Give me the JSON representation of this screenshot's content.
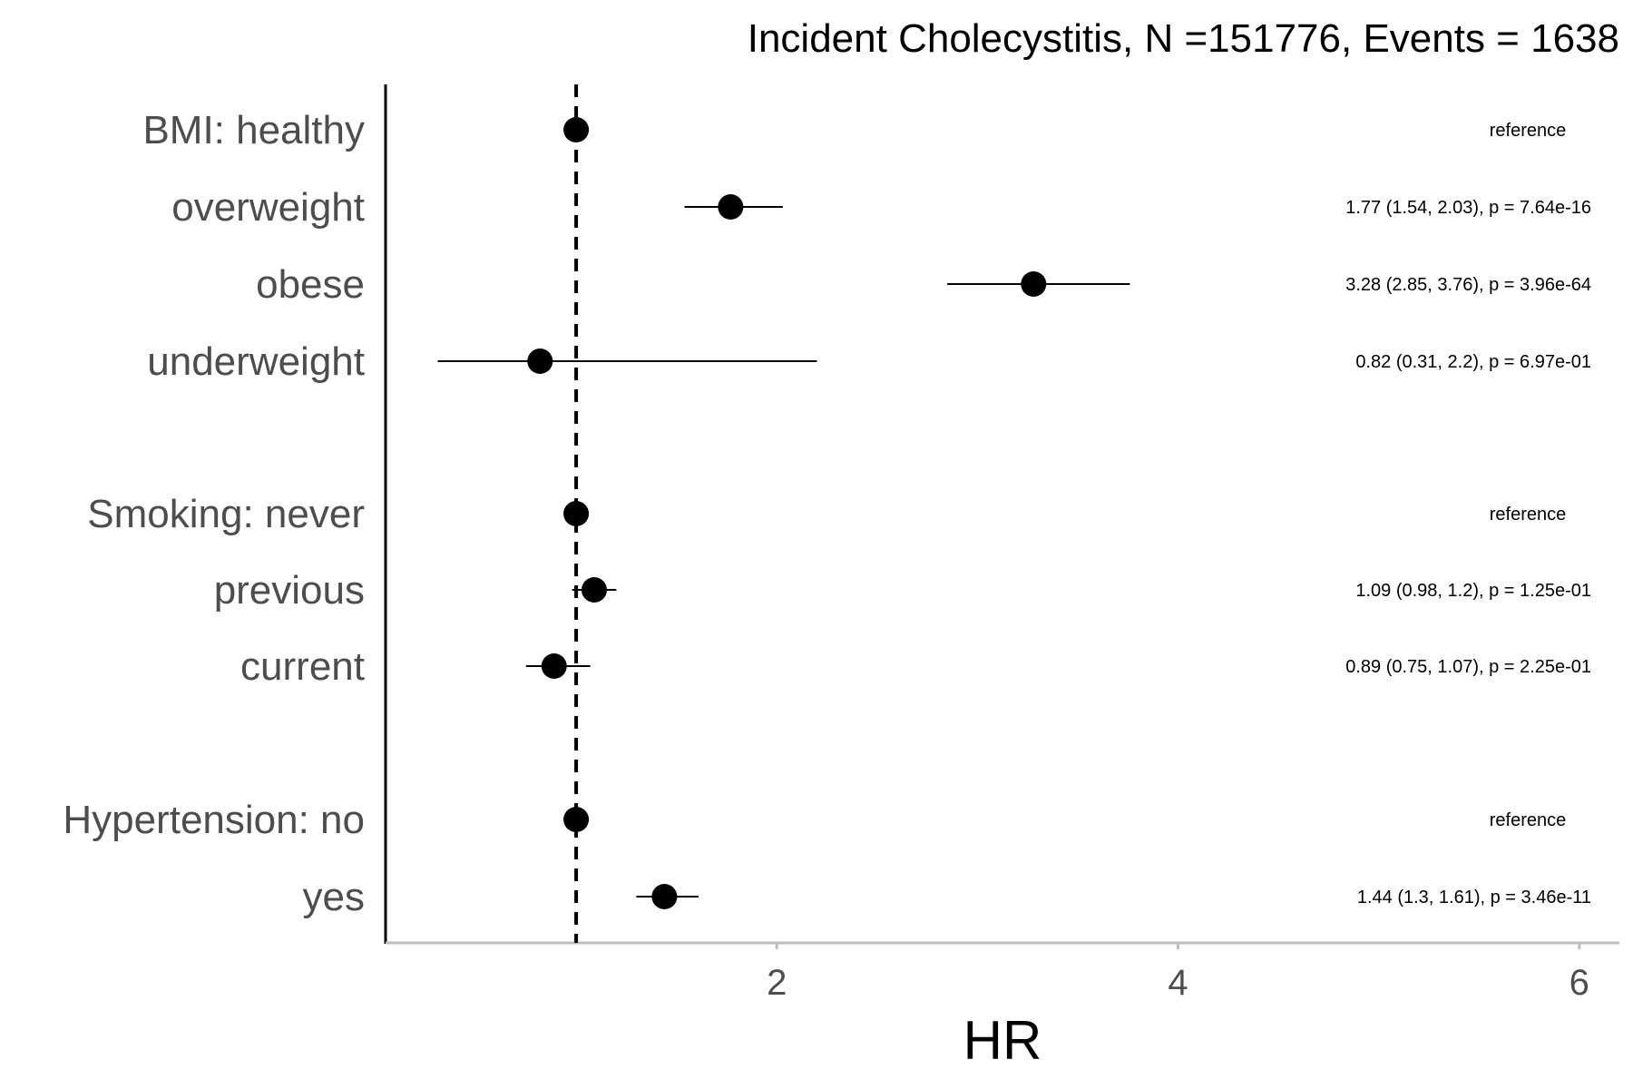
{
  "chart_data": {
    "type": "scatter",
    "title": "Incident Cholecystitis, N =151776, Events = 1638",
    "xlabel": "HR",
    "ylabel": "",
    "xlim": [
      0.05,
      6.2
    ],
    "xticks": [
      2,
      4,
      6
    ],
    "reference_line": 1,
    "grid": false,
    "rows": [
      {
        "label": "BMI: healthy",
        "hr": 1.0,
        "lower": null,
        "upper": null,
        "annotation": "reference"
      },
      {
        "label": "overweight",
        "hr": 1.77,
        "lower": 1.54,
        "upper": 2.03,
        "annotation": "1.77 (1.54, 2.03), p = 7.64e-16"
      },
      {
        "label": "obese",
        "hr": 3.28,
        "lower": 2.85,
        "upper": 3.76,
        "annotation": "3.28 (2.85, 3.76), p = 3.96e-64"
      },
      {
        "label": "underweight",
        "hr": 0.82,
        "lower": 0.31,
        "upper": 2.2,
        "annotation": "0.82 (0.31, 2.2), p = 6.97e-01"
      },
      {
        "label": "Smoking: never",
        "hr": 1.0,
        "lower": null,
        "upper": null,
        "annotation": "reference"
      },
      {
        "label": "previous",
        "hr": 1.09,
        "lower": 0.98,
        "upper": 1.2,
        "annotation": "1.09 (0.98, 1.2), p = 1.25e-01"
      },
      {
        "label": "current",
        "hr": 0.89,
        "lower": 0.75,
        "upper": 1.07,
        "annotation": "0.89 (0.75, 1.07), p = 2.25e-01"
      },
      {
        "label": "Hypertension: no",
        "hr": 1.0,
        "lower": null,
        "upper": null,
        "annotation": "reference"
      },
      {
        "label": "yes",
        "hr": 1.44,
        "lower": 1.3,
        "upper": 1.61,
        "annotation": "1.44 (1.3, 1.61), p = 3.46e-11"
      }
    ]
  }
}
